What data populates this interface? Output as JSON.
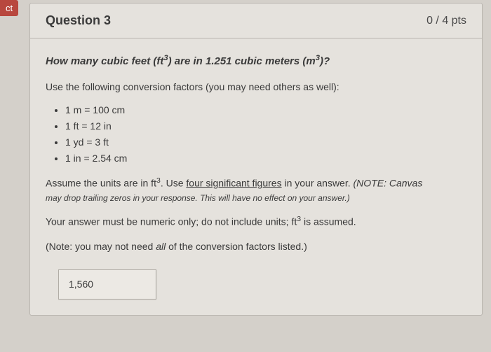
{
  "sideTab": {
    "label": "ct"
  },
  "header": {
    "title": "Question 3",
    "points": "0 / 4 pts"
  },
  "body": {
    "prompt_pre": "How many cubic feet (ft",
    "prompt_exp1": "3",
    "prompt_mid": ") are in 1.251 cubic meters (m",
    "prompt_exp2": "3",
    "prompt_post": ")?",
    "sub": "Use the following conversion factors (you may need others as well):",
    "factors": [
      "1 m = 100 cm",
      "1 ft = 12 in",
      "1 yd = 3 ft",
      "1 in = 2.54 cm"
    ],
    "assume_pre": "Assume the units are in ft",
    "assume_exp": "3",
    "assume_mid": ".  Use ",
    "assume_underlined": "four significant figures",
    "assume_post": " in your answer.  ",
    "assume_note_label": "(NOTE: Canvas",
    "note_small": "may drop trailing zeros in your response.  This will have no effect  on your answer.)",
    "numeric_pre": "Your answer must be numeric only; do not include units; ft",
    "numeric_exp": "3",
    "numeric_post": " is assumed.",
    "may_pre": "(Note: you may not need ",
    "may_italic": "all",
    "may_post": " of the conversion factors listed.)",
    "answer_value": "1,560"
  },
  "colors": {
    "page_bg": "#d4d0ca",
    "card_bg": "#e5e2dd",
    "border": "#b8b4ae",
    "tab_bg": "#b8473e",
    "text": "#3a3a3a"
  }
}
